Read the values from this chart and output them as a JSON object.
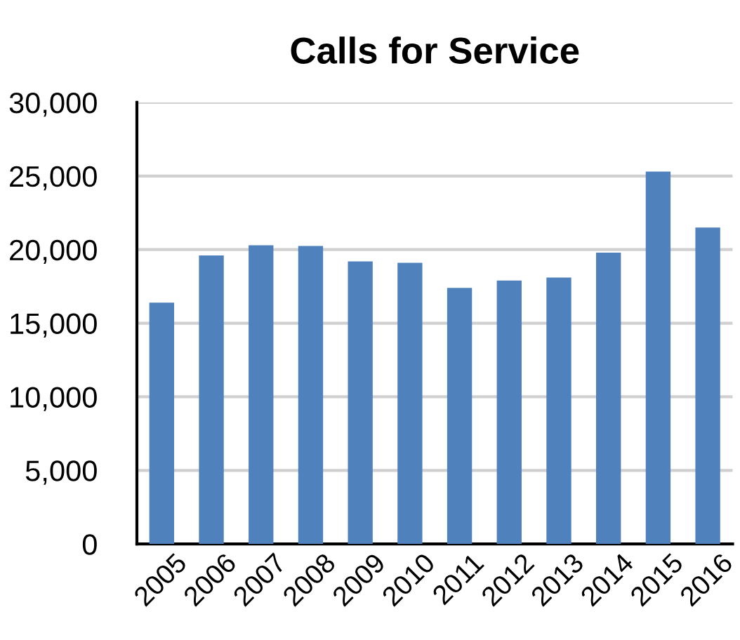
{
  "chart_data": {
    "type": "bar",
    "title": "Calls for Service",
    "categories": [
      "2005",
      "2006",
      "2007",
      "2008",
      "2009",
      "2010",
      "2011",
      "2012",
      "2013",
      "2014",
      "2015",
      "2016"
    ],
    "values": [
      16400,
      19600,
      20300,
      20250,
      19200,
      19100,
      17400,
      17900,
      18100,
      19800,
      25300,
      21500
    ],
    "color": "#4f81bd",
    "ylim": [
      0,
      30000
    ],
    "yticks": [
      {
        "value": 0,
        "label": "0"
      },
      {
        "value": 5000,
        "label": "5,000"
      },
      {
        "value": 10000,
        "label": "10,000"
      },
      {
        "value": 15000,
        "label": "15,000"
      },
      {
        "value": 20000,
        "label": "20,000"
      },
      {
        "value": 25000,
        "label": "25,000"
      },
      {
        "value": 30000,
        "label": "30,000"
      }
    ],
    "grid": "y"
  }
}
